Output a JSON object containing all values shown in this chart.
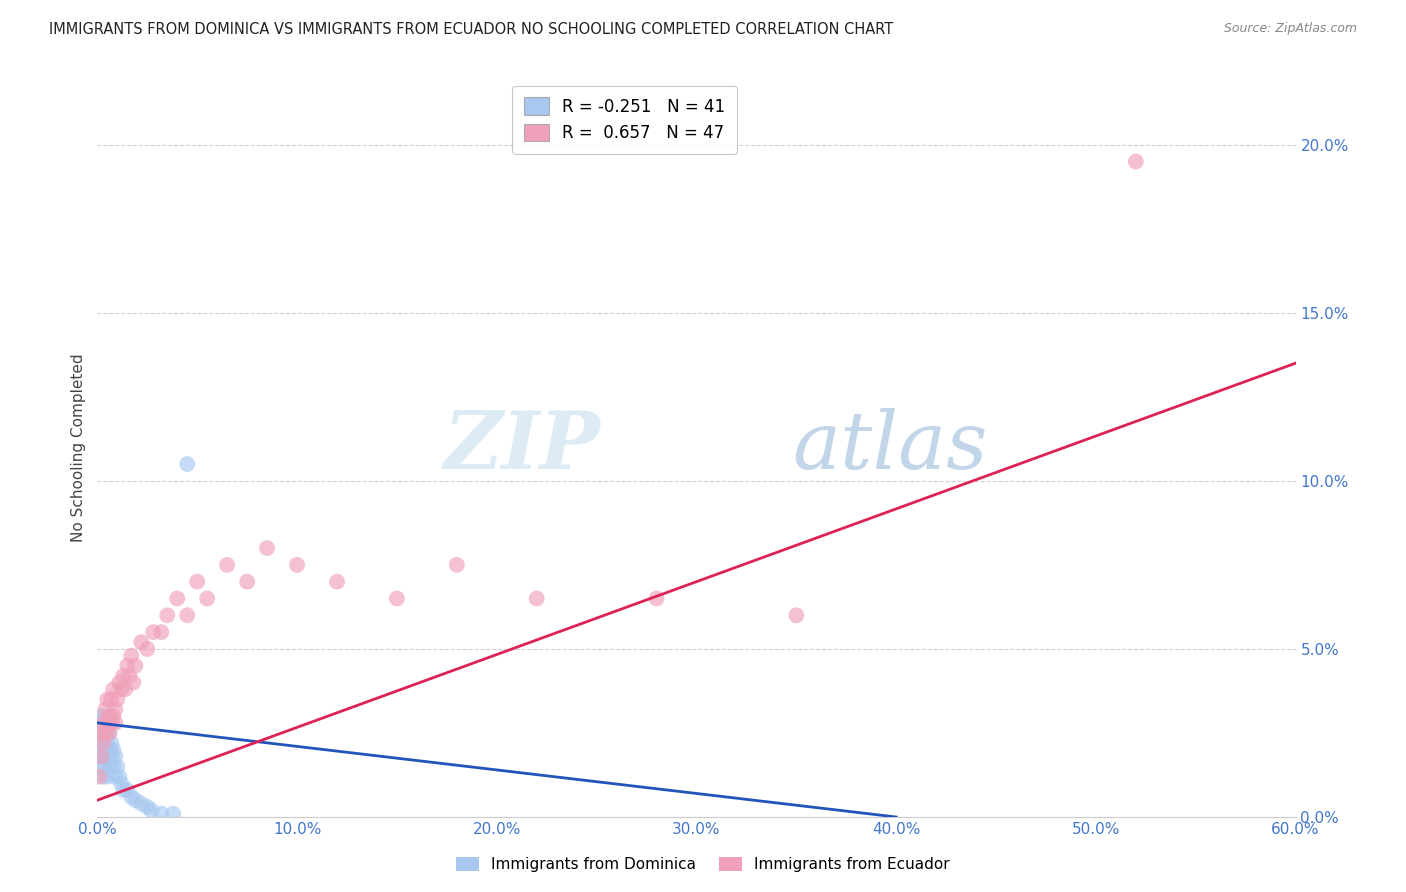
{
  "title": "IMMIGRANTS FROM DOMINICA VS IMMIGRANTS FROM ECUADOR NO SCHOOLING COMPLETED CORRELATION CHART",
  "source": "Source: ZipAtlas.com",
  "ylabel": "No Schooling Completed",
  "xlim": [
    0.0,
    0.6
  ],
  "ylim": [
    0.0,
    0.22
  ],
  "xticks": [
    0.0,
    0.1,
    0.2,
    0.3,
    0.4,
    0.5,
    0.6
  ],
  "yticks": [
    0.0,
    0.05,
    0.1,
    0.15,
    0.2
  ],
  "xtick_labels": [
    "0.0%",
    "10.0%",
    "20.0%",
    "30.0%",
    "40.0%",
    "50.0%",
    "60.0%"
  ],
  "ytick_labels": [
    "0.0%",
    "5.0%",
    "10.0%",
    "15.0%",
    "20.0%"
  ],
  "blue_R": -0.251,
  "blue_N": 41,
  "pink_R": 0.657,
  "pink_N": 47,
  "legend_label_blue": "Immigrants from Dominica",
  "legend_label_pink": "Immigrants from Ecuador",
  "blue_color": "#a8c8f0",
  "pink_color": "#f0a0b8",
  "blue_line_color": "#2255bb",
  "pink_line_color": "#dd2255",
  "watermark_zip": "ZIP",
  "watermark_atlas": "atlas",
  "blue_x": [
    0.001,
    0.001,
    0.001,
    0.002,
    0.002,
    0.002,
    0.002,
    0.003,
    0.003,
    0.003,
    0.003,
    0.004,
    0.004,
    0.004,
    0.004,
    0.005,
    0.005,
    0.005,
    0.005,
    0.006,
    0.006,
    0.006,
    0.007,
    0.007,
    0.008,
    0.008,
    0.009,
    0.009,
    0.01,
    0.011,
    0.012,
    0.013,
    0.015,
    0.017,
    0.019,
    0.022,
    0.025,
    0.027,
    0.032,
    0.038,
    0.045
  ],
  "blue_y": [
    0.025,
    0.022,
    0.018,
    0.03,
    0.025,
    0.02,
    0.015,
    0.028,
    0.022,
    0.018,
    0.012,
    0.03,
    0.025,
    0.02,
    0.015,
    0.028,
    0.022,
    0.018,
    0.012,
    0.025,
    0.02,
    0.015,
    0.022,
    0.018,
    0.02,
    0.015,
    0.018,
    0.012,
    0.015,
    0.012,
    0.01,
    0.008,
    0.008,
    0.006,
    0.005,
    0.004,
    0.003,
    0.002,
    0.001,
    0.001,
    0.105
  ],
  "pink_x": [
    0.001,
    0.002,
    0.002,
    0.003,
    0.003,
    0.004,
    0.004,
    0.005,
    0.005,
    0.006,
    0.006,
    0.007,
    0.007,
    0.008,
    0.008,
    0.009,
    0.009,
    0.01,
    0.011,
    0.012,
    0.013,
    0.014,
    0.015,
    0.016,
    0.017,
    0.018,
    0.019,
    0.022,
    0.025,
    0.028,
    0.032,
    0.035,
    0.04,
    0.045,
    0.05,
    0.055,
    0.065,
    0.075,
    0.085,
    0.1,
    0.12,
    0.15,
    0.18,
    0.22,
    0.28,
    0.35,
    0.52
  ],
  "pink_y": [
    0.012,
    0.018,
    0.025,
    0.022,
    0.028,
    0.025,
    0.032,
    0.028,
    0.035,
    0.025,
    0.03,
    0.028,
    0.035,
    0.03,
    0.038,
    0.028,
    0.032,
    0.035,
    0.04,
    0.038,
    0.042,
    0.038,
    0.045,
    0.042,
    0.048,
    0.04,
    0.045,
    0.052,
    0.05,
    0.055,
    0.055,
    0.06,
    0.065,
    0.06,
    0.07,
    0.065,
    0.075,
    0.07,
    0.08,
    0.075,
    0.07,
    0.065,
    0.075,
    0.065,
    0.065,
    0.06,
    0.195
  ],
  "blue_line_x": [
    0.0,
    0.4
  ],
  "blue_line_y": [
    0.028,
    0.0
  ],
  "pink_line_x": [
    0.0,
    0.6
  ],
  "pink_line_y": [
    0.005,
    0.135
  ]
}
